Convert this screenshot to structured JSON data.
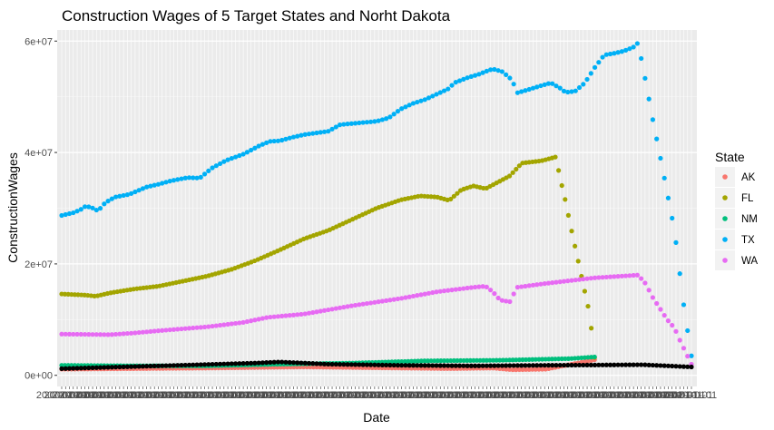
{
  "chart_data": {
    "type": "scatter",
    "title": "Construction Wages of 5 Target States and Norht Dakota",
    "xlabel": "Date",
    "ylabel": "ConstructionWages",
    "ylim": [
      -2000000,
      62000000
    ],
    "y_ticks": [
      {
        "value": 0,
        "label": "0e+00"
      },
      {
        "value": 20000000,
        "label": "2e+07"
      },
      {
        "value": 40000000,
        "label": "4e+07"
      },
      {
        "value": 60000000,
        "label": "6e+07"
      }
    ],
    "x_tick_label": "2007-01-01",
    "x_tick_label_end": "2020-01-01",
    "grid": true,
    "legend": {
      "title": "State",
      "position": "right",
      "entries": [
        {
          "label": "AK",
          "color": "#F8766D"
        },
        {
          "label": "FL",
          "color": "#A3A500"
        },
        {
          "label": "NM",
          "color": "#00BF7D"
        },
        {
          "label": "TX",
          "color": "#00B0F6"
        },
        {
          "label": "WA",
          "color": "#E76BF3"
        }
      ]
    },
    "unlabeled_series_color": "#000000",
    "series_keyframes": [
      {
        "name": "AK",
        "color": "#F8766D",
        "points": [
          [
            0,
            1100000
          ],
          [
            60,
            1300000
          ],
          [
            100,
            1500000
          ],
          [
            140,
            1300000
          ],
          [
            160,
            1200000
          ],
          [
            178,
            1300000
          ],
          [
            186,
            1000000
          ],
          [
            200,
            1100000
          ],
          [
            220,
            2800000
          ]
        ]
      },
      {
        "name": "FL",
        "color": "#A3A500",
        "points": [
          [
            0,
            14600000
          ],
          [
            10,
            14400000
          ],
          [
            14,
            14200000
          ],
          [
            20,
            14800000
          ],
          [
            30,
            15500000
          ],
          [
            40,
            16000000
          ],
          [
            60,
            17800000
          ],
          [
            70,
            19000000
          ],
          [
            80,
            20600000
          ],
          [
            90,
            22500000
          ],
          [
            100,
            24500000
          ],
          [
            110,
            26000000
          ],
          [
            120,
            28000000
          ],
          [
            130,
            30000000
          ],
          [
            140,
            31500000
          ],
          [
            148,
            32200000
          ],
          [
            155,
            32000000
          ],
          [
            160,
            31400000
          ],
          [
            165,
            33300000
          ],
          [
            170,
            34000000
          ],
          [
            175,
            33500000
          ],
          [
            185,
            35800000
          ],
          [
            190,
            38100000
          ],
          [
            198,
            38500000
          ],
          [
            204,
            39200000
          ],
          [
            206,
            35000000
          ],
          [
            208,
            31300000
          ],
          [
            210,
            27000000
          ],
          [
            212,
            23000000
          ],
          [
            214,
            19000000
          ],
          [
            216,
            15000000
          ],
          [
            218,
            11000000
          ],
          [
            220,
            3200000
          ]
        ]
      },
      {
        "name": "NM",
        "color": "#00BF7D",
        "points": [
          [
            0,
            1800000
          ],
          [
            30,
            1700000
          ],
          [
            60,
            1700000
          ],
          [
            90,
            2000000
          ],
          [
            120,
            2200000
          ],
          [
            150,
            2600000
          ],
          [
            180,
            2700000
          ],
          [
            210,
            3000000
          ],
          [
            220,
            3300000
          ]
        ]
      },
      {
        "name": "TX",
        "color": "#00B0F6",
        "points": [
          [
            0,
            28700000
          ],
          [
            5,
            29200000
          ],
          [
            8,
            29800000
          ],
          [
            10,
            30400000
          ],
          [
            13,
            30000000
          ],
          [
            15,
            29500000
          ],
          [
            18,
            31000000
          ],
          [
            22,
            32000000
          ],
          [
            28,
            32500000
          ],
          [
            35,
            33800000
          ],
          [
            40,
            34300000
          ],
          [
            45,
            34900000
          ],
          [
            52,
            35500000
          ],
          [
            57,
            35400000
          ],
          [
            62,
            37200000
          ],
          [
            68,
            38600000
          ],
          [
            75,
            39700000
          ],
          [
            82,
            41300000
          ],
          [
            86,
            42000000
          ],
          [
            90,
            42100000
          ],
          [
            95,
            42700000
          ],
          [
            100,
            43200000
          ],
          [
            105,
            43500000
          ],
          [
            110,
            43800000
          ],
          [
            115,
            45000000
          ],
          [
            120,
            45200000
          ],
          [
            130,
            45600000
          ],
          [
            135,
            46200000
          ],
          [
            140,
            47800000
          ],
          [
            145,
            48800000
          ],
          [
            150,
            49500000
          ],
          [
            155,
            50500000
          ],
          [
            160,
            51500000
          ],
          [
            162,
            52500000
          ],
          [
            168,
            53500000
          ],
          [
            172,
            54000000
          ],
          [
            176,
            54700000
          ],
          [
            178,
            55000000
          ],
          [
            182,
            54500000
          ],
          [
            186,
            53000000
          ],
          [
            188,
            50700000
          ],
          [
            192,
            51200000
          ],
          [
            198,
            52000000
          ],
          [
            202,
            52500000
          ],
          [
            206,
            51500000
          ],
          [
            208,
            50800000
          ],
          [
            212,
            51000000
          ],
          [
            216,
            52500000
          ],
          [
            220,
            55200000
          ],
          [
            224,
            57500000
          ],
          [
            228,
            57800000
          ],
          [
            232,
            58200000
          ],
          [
            236,
            58900000
          ],
          [
            238,
            59700000
          ],
          [
            241,
            53000000
          ],
          [
            244,
            46000000
          ],
          [
            247,
            39500000
          ],
          [
            250,
            32800000
          ],
          [
            253,
            26000000
          ],
          [
            255,
            19000000
          ],
          [
            257,
            12000000
          ],
          [
            260,
            3500000
          ]
        ]
      },
      {
        "name": "WA",
        "color": "#E76BF3",
        "points": [
          [
            0,
            7400000
          ],
          [
            20,
            7300000
          ],
          [
            30,
            7600000
          ],
          [
            40,
            8000000
          ],
          [
            60,
            8700000
          ],
          [
            75,
            9500000
          ],
          [
            85,
            10400000
          ],
          [
            100,
            11000000
          ],
          [
            120,
            12500000
          ],
          [
            140,
            13800000
          ],
          [
            155,
            15000000
          ],
          [
            170,
            15800000
          ],
          [
            175,
            16000000
          ],
          [
            178,
            15000000
          ],
          [
            181,
            13500000
          ],
          [
            185,
            13200000
          ],
          [
            188,
            15800000
          ],
          [
            200,
            16500000
          ],
          [
            220,
            17500000
          ],
          [
            238,
            18000000
          ],
          [
            241,
            16500000
          ],
          [
            244,
            14000000
          ],
          [
            247,
            12000000
          ],
          [
            250,
            10000000
          ],
          [
            253,
            8500000
          ],
          [
            255,
            6500000
          ],
          [
            260,
            2000000
          ]
        ]
      },
      {
        "name": "",
        "color": "#000000",
        "points": [
          [
            0,
            1200000
          ],
          [
            40,
            1700000
          ],
          [
            80,
            2200000
          ],
          [
            90,
            2400000
          ],
          [
            110,
            2000000
          ],
          [
            140,
            1800000
          ],
          [
            170,
            1700000
          ],
          [
            200,
            1800000
          ],
          [
            240,
            1900000
          ],
          [
            260,
            1500000
          ]
        ]
      }
    ],
    "n_points_per_series": 164
  }
}
